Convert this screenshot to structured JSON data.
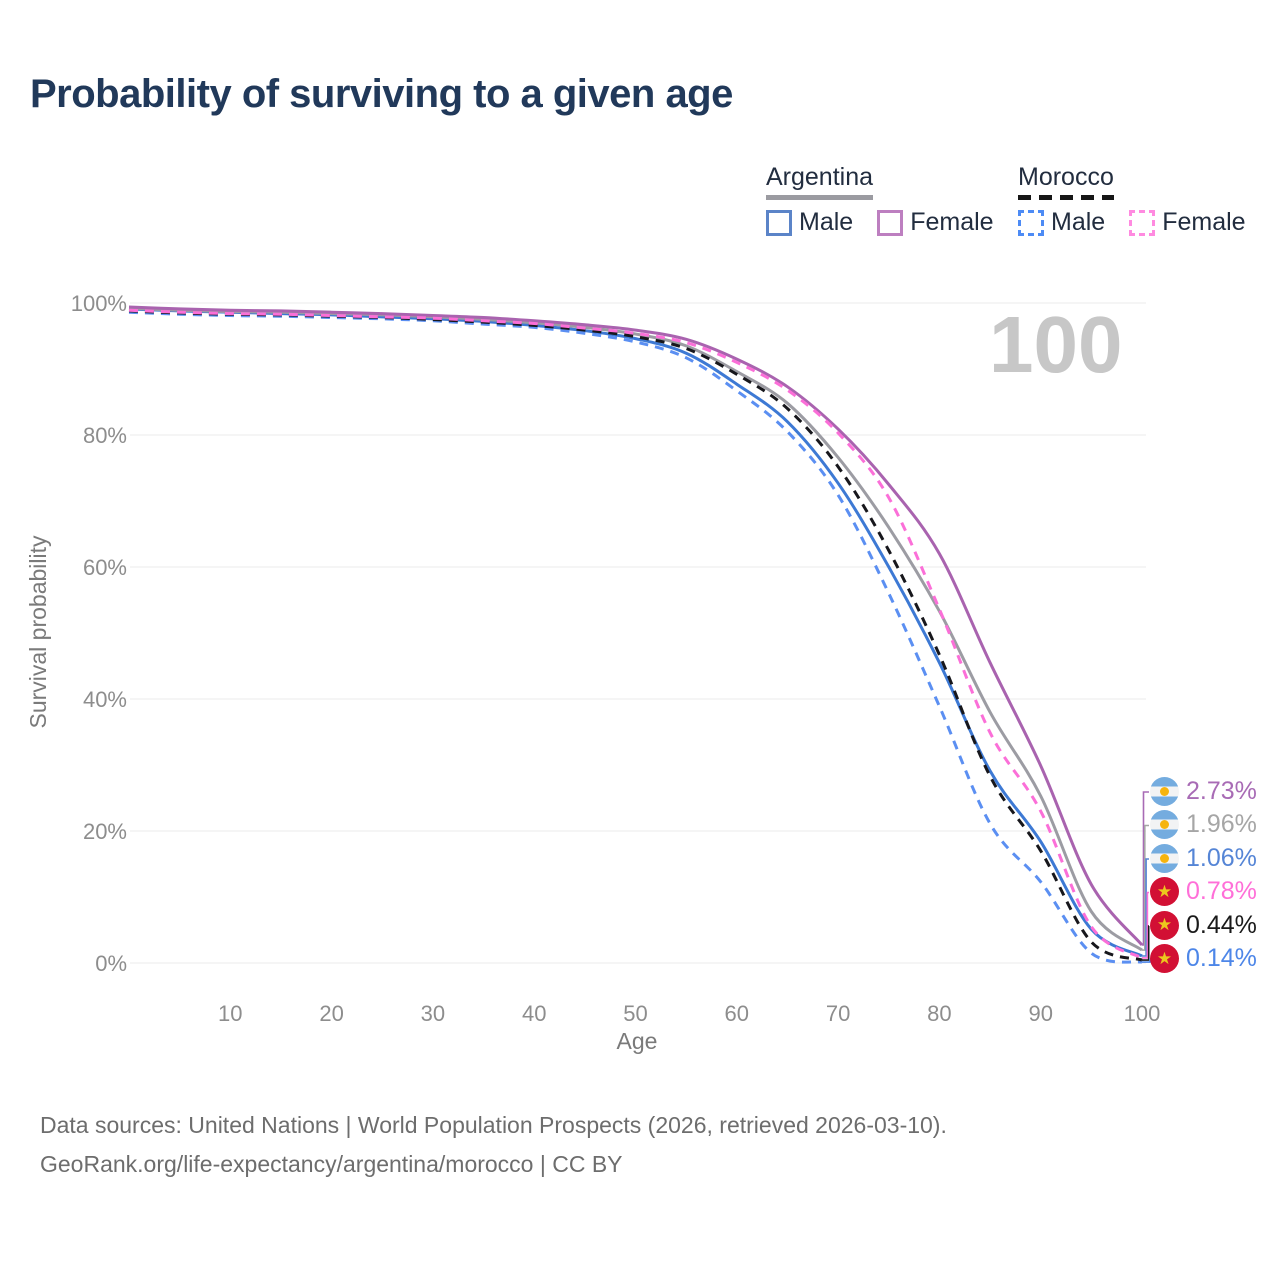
{
  "title": "Probability of surviving to a given age",
  "watermark": "100",
  "legend": {
    "position": "top-right",
    "groups": [
      {
        "country": "Argentina",
        "line_style": "solid",
        "line_sample_color": "#9b9ba1",
        "items": [
          {
            "label": "Male",
            "swatch_color": "#5b84c8",
            "dashed": false
          },
          {
            "label": "Female",
            "swatch_color": "#bd7fc0",
            "dashed": false
          }
        ]
      },
      {
        "country": "Morocco",
        "line_style": "dashed",
        "line_sample_color": "#161616",
        "items": [
          {
            "label": "Male",
            "swatch_color": "#4d8bf5",
            "dashed": true
          },
          {
            "label": "Female",
            "swatch_color": "#ff8ae0",
            "dashed": true
          }
        ]
      }
    ]
  },
  "chart_data": {
    "type": "line",
    "title": "Probability of surviving to a given age",
    "xlabel": "Age",
    "ylabel": "Survival probability",
    "xlim": [
      0,
      100
    ],
    "ylim": [
      0,
      100
    ],
    "grid": true,
    "x_ticks": [
      10,
      20,
      30,
      40,
      50,
      60,
      70,
      80,
      90,
      100
    ],
    "y_ticks": [
      0,
      20,
      40,
      60,
      80,
      100
    ],
    "y_tick_labels": [
      "0%",
      "20%",
      "40%",
      "60%",
      "80%",
      "100%"
    ],
    "series": [
      {
        "name": "Argentina Male",
        "country": "Argentina",
        "sex": "Male",
        "color": "#3d79d4",
        "dashed": false,
        "label_color": "#5585d6",
        "end_label": "1.06%",
        "points": [
          [
            0,
            99.1
          ],
          [
            5,
            98.8
          ],
          [
            10,
            98.6
          ],
          [
            15,
            98.4
          ],
          [
            20,
            98.2
          ],
          [
            25,
            97.9
          ],
          [
            30,
            97.6
          ],
          [
            35,
            97.2
          ],
          [
            40,
            96.6
          ],
          [
            45,
            95.8
          ],
          [
            50,
            94.6
          ],
          [
            55,
            92.4
          ],
          [
            60,
            87.7
          ],
          [
            65,
            82.0
          ],
          [
            70,
            72.7
          ],
          [
            75,
            60.0
          ],
          [
            80,
            45.5
          ],
          [
            85,
            29.1
          ],
          [
            90,
            18.4
          ],
          [
            95,
            5.1
          ],
          [
            100,
            1.06
          ]
        ]
      },
      {
        "name": "Argentina Both sexes",
        "country": "Argentina",
        "sex": "Both",
        "color": "#9c9ca3",
        "dashed": false,
        "label_color": "#a6a6a6",
        "end_label": "1.96%",
        "points": [
          [
            0,
            99.2
          ],
          [
            5,
            98.9
          ],
          [
            10,
            98.7
          ],
          [
            15,
            98.6
          ],
          [
            20,
            98.4
          ],
          [
            25,
            98.2
          ],
          [
            30,
            97.9
          ],
          [
            35,
            97.5
          ],
          [
            40,
            97.0
          ],
          [
            45,
            96.3
          ],
          [
            50,
            95.3
          ],
          [
            55,
            93.5
          ],
          [
            60,
            89.6
          ],
          [
            65,
            84.8
          ],
          [
            70,
            76.6
          ],
          [
            75,
            66.0
          ],
          [
            80,
            53.3
          ],
          [
            85,
            38.0
          ],
          [
            90,
            25.3
          ],
          [
            95,
            7.8
          ],
          [
            100,
            1.96
          ]
        ]
      },
      {
        "name": "Argentina Female",
        "country": "Argentina",
        "sex": "Female",
        "color": "#a963af",
        "dashed": false,
        "label_color": "#a86bb5",
        "end_label": "2.73%",
        "points": [
          [
            0,
            99.4
          ],
          [
            5,
            99.1
          ],
          [
            10,
            98.9
          ],
          [
            15,
            98.8
          ],
          [
            20,
            98.6
          ],
          [
            25,
            98.4
          ],
          [
            30,
            98.1
          ],
          [
            35,
            97.8
          ],
          [
            40,
            97.3
          ],
          [
            45,
            96.7
          ],
          [
            50,
            95.9
          ],
          [
            55,
            94.5
          ],
          [
            60,
            91.5
          ],
          [
            65,
            87.3
          ],
          [
            70,
            80.9
          ],
          [
            75,
            72.5
          ],
          [
            80,
            62.0
          ],
          [
            85,
            45.5
          ],
          [
            90,
            29.9
          ],
          [
            95,
            11.9
          ],
          [
            100,
            2.73
          ]
        ]
      },
      {
        "name": "Morocco Male",
        "country": "Morocco",
        "sex": "Male",
        "color": "#5b8ff2",
        "dashed": true,
        "label_color": "#4d86e8",
        "end_label": "0.14%",
        "points": [
          [
            0,
            98.6
          ],
          [
            5,
            98.3
          ],
          [
            10,
            98.1
          ],
          [
            15,
            98.0
          ],
          [
            20,
            97.8
          ],
          [
            25,
            97.6
          ],
          [
            30,
            97.3
          ],
          [
            35,
            96.8
          ],
          [
            40,
            96.3
          ],
          [
            45,
            95.4
          ],
          [
            50,
            94.1
          ],
          [
            55,
            91.7
          ],
          [
            60,
            86.7
          ],
          [
            65,
            80.5
          ],
          [
            70,
            70.9
          ],
          [
            75,
            56.0
          ],
          [
            80,
            38.9
          ],
          [
            85,
            21.1
          ],
          [
            90,
            12.3
          ],
          [
            95,
            1.5
          ],
          [
            100,
            0.14
          ]
        ]
      },
      {
        "name": "Morocco Both sexes",
        "country": "Morocco",
        "sex": "Both",
        "color": "#17171c",
        "dashed": true,
        "label_color": "#1a1a1a",
        "end_label": "0.44%",
        "points": [
          [
            0,
            98.8
          ],
          [
            5,
            98.5
          ],
          [
            10,
            98.3
          ],
          [
            15,
            98.2
          ],
          [
            20,
            98.0
          ],
          [
            25,
            97.8
          ],
          [
            30,
            97.5
          ],
          [
            35,
            97.1
          ],
          [
            40,
            96.6
          ],
          [
            45,
            95.9
          ],
          [
            50,
            94.9
          ],
          [
            55,
            93.1
          ],
          [
            60,
            89.2
          ],
          [
            65,
            84.0
          ],
          [
            70,
            75.2
          ],
          [
            75,
            62.5
          ],
          [
            80,
            46.7
          ],
          [
            85,
            28.3
          ],
          [
            90,
            17.0
          ],
          [
            95,
            3.2
          ],
          [
            100,
            0.44
          ]
        ]
      },
      {
        "name": "Morocco Female",
        "country": "Morocco",
        "sex": "Female",
        "color": "#fb6fd8",
        "dashed": true,
        "label_color": "#ff6fd8",
        "end_label": "0.78%",
        "points": [
          [
            0,
            98.9
          ],
          [
            5,
            98.6
          ],
          [
            10,
            98.4
          ],
          [
            15,
            98.3
          ],
          [
            20,
            98.1
          ],
          [
            25,
            97.9
          ],
          [
            30,
            97.7
          ],
          [
            35,
            97.3
          ],
          [
            40,
            96.9
          ],
          [
            45,
            96.2
          ],
          [
            50,
            95.4
          ],
          [
            55,
            94.0
          ],
          [
            60,
            91.0
          ],
          [
            65,
            86.8
          ],
          [
            70,
            80.3
          ],
          [
            75,
            70.5
          ],
          [
            80,
            53.6
          ],
          [
            85,
            34.9
          ],
          [
            90,
            23.0
          ],
          [
            95,
            5.5
          ],
          [
            100,
            0.78
          ]
        ]
      }
    ],
    "end_labels": [
      {
        "flag": "argentina",
        "value": "2.73%",
        "series": "Argentina Female",
        "color": "#a86bb5"
      },
      {
        "flag": "argentina",
        "value": "1.96%",
        "series": "Argentina Both sexes",
        "color": "#a6a6a6"
      },
      {
        "flag": "argentina",
        "value": "1.06%",
        "series": "Argentina Male",
        "color": "#5585d6"
      },
      {
        "flag": "morocco",
        "value": "0.78%",
        "series": "Morocco Female",
        "color": "#ff6fd8"
      },
      {
        "flag": "morocco",
        "value": "0.44%",
        "series": "Morocco Both sexes",
        "color": "#1a1a1a"
      },
      {
        "flag": "morocco",
        "value": "0.14%",
        "series": "Morocco Male",
        "color": "#4d86e8"
      }
    ],
    "watermark": "100"
  },
  "footer": {
    "line1": "Data sources: United Nations | World Population Prospects (2026, retrieved 2026-03-10).",
    "line2": "GeoRank.org/life-expectancy/argentina/morocco | CC BY"
  }
}
